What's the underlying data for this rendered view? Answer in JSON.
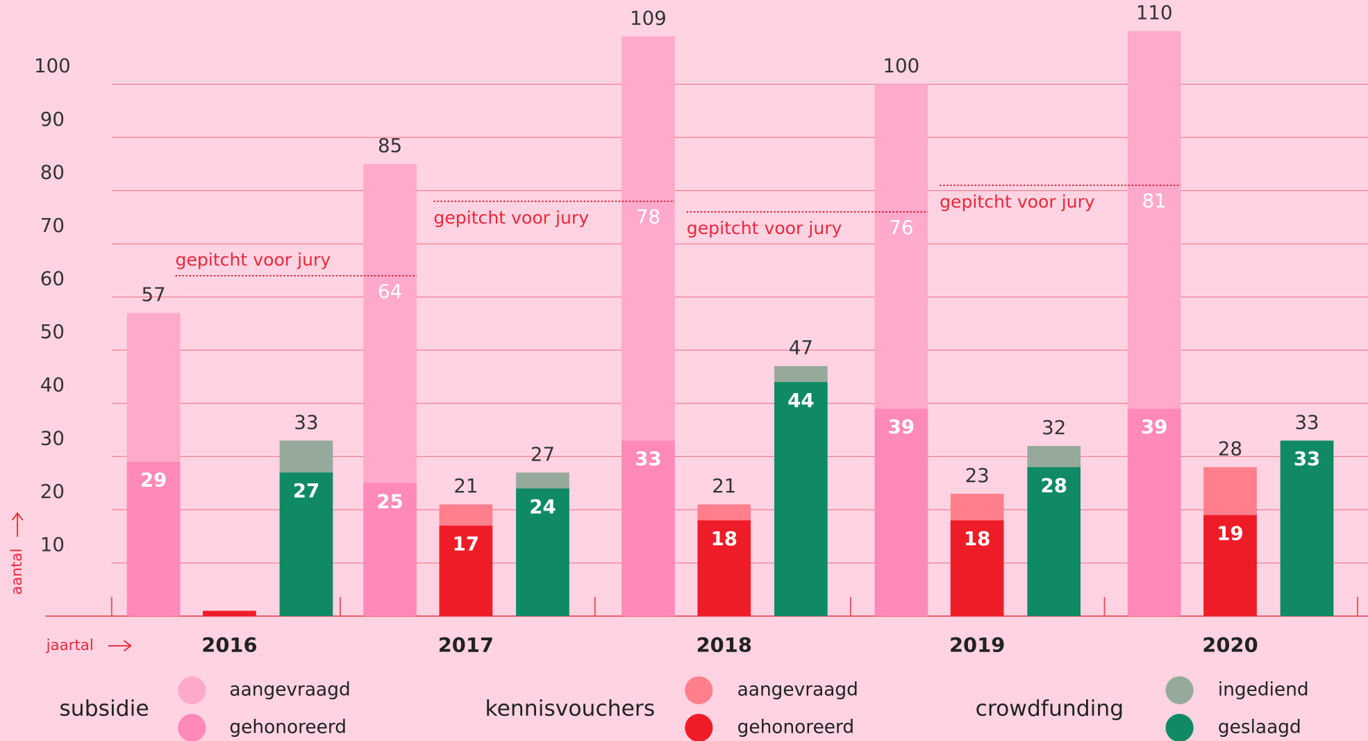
{
  "chart_data": {
    "type": "bar",
    "y_label": "aantal",
    "x_label": "jaartal",
    "categories": [
      "2016",
      "2017",
      "2018",
      "2019",
      "2020"
    ],
    "ylim": [
      0,
      115
    ],
    "yticks": [
      10,
      20,
      30,
      40,
      50,
      60,
      70,
      80,
      90,
      100
    ],
    "grid": true,
    "groups": [
      {
        "name": "subsidie",
        "series": [
          {
            "name": "aangevraagd",
            "color": "#ffa9cb",
            "values": [
              57,
              85,
              109,
              100,
              110
            ]
          },
          {
            "name": "gehonoreerd",
            "color": "#ff89b9",
            "values": [
              29,
              25,
              33,
              39,
              39
            ]
          }
        ]
      },
      {
        "name": "kennisvouchers",
        "series": [
          {
            "name": "aangevraagd",
            "color": "#ff7f8c",
            "values": [
              1,
              21,
              21,
              23,
              28
            ],
            "value_labels": [
              null,
              "21",
              "21",
              "23",
              "28"
            ]
          },
          {
            "name": "gehonoreerd",
            "color": "#ee1c27",
            "values": [
              1,
              17,
              18,
              18,
              19
            ],
            "value_labels": [
              null,
              "17",
              "18",
              "18",
              "19"
            ]
          }
        ]
      },
      {
        "name": "crowdfunding",
        "series": [
          {
            "name": "ingediend",
            "color": "#95aa9b",
            "values": [
              33,
              27,
              47,
              32,
              33
            ]
          },
          {
            "name": "geslaagd",
            "color": "#0f8a64",
            "values": [
              27,
              24,
              44,
              28,
              33
            ]
          }
        ]
      }
    ],
    "annotation": {
      "text": "gepitcht voor jury",
      "values": [
        null,
        64,
        78,
        76,
        81
      ]
    }
  }
}
